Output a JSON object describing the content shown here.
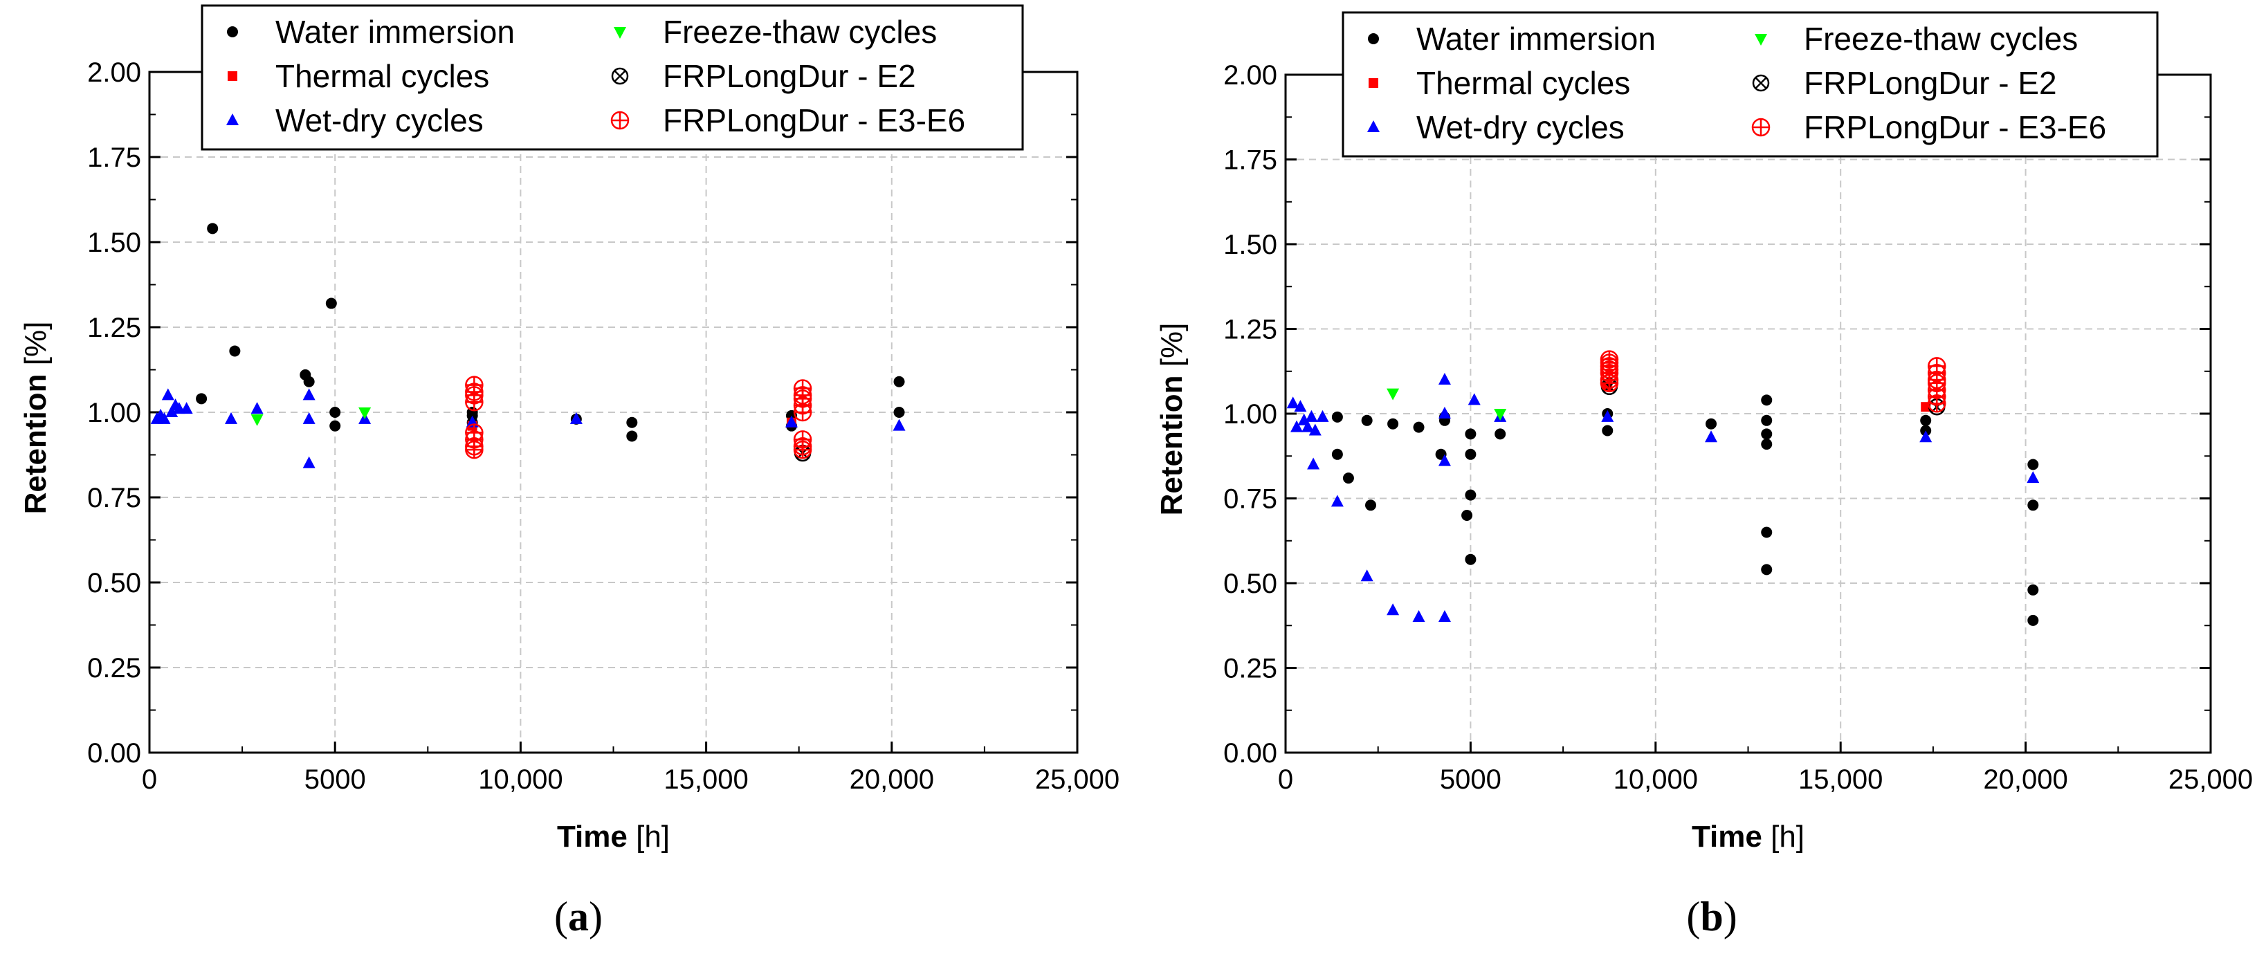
{
  "colors": {
    "water": "#000000",
    "thermal": "#ff0000",
    "wetdry": "#0000ff",
    "freeze": "#00ff00",
    "e2": "#000000",
    "e36": "#ff0000",
    "grid": "#c8c8c8"
  },
  "legend": {
    "water": "Water immersion",
    "thermal": "Thermal cycles",
    "wetdry": "Wet-dry cycles",
    "freeze": "Freeze-thaw cycles",
    "e2": "FRPLongDur - E2",
    "e36": "FRPLongDur - E3-E6"
  },
  "chart_data": [
    {
      "type": "scatter",
      "panel_label": "a",
      "xlabel_bold": "Time",
      "xlabel_unit": " [h]",
      "ylabel_bold": "Retention",
      "ylabel_unit": " [%]",
      "xlim": [
        0,
        25000
      ],
      "ylim": [
        0,
        2.0
      ],
      "grid": true,
      "legend_position": "top-center",
      "x_ticks": [
        0,
        5000,
        10000,
        15000,
        20000,
        25000
      ],
      "x_tick_labels": [
        "0",
        "5000",
        "10,000",
        "15,000",
        "20,000",
        "25,000"
      ],
      "y_ticks": [
        0,
        0.25,
        0.5,
        0.75,
        1.0,
        1.25,
        1.5,
        1.75,
        2.0
      ],
      "y_tick_labels": [
        "0.00",
        "0.25",
        "0.50",
        "0.75",
        "1.00",
        "1.25",
        "1.50",
        "1.75",
        "2.00"
      ],
      "series": [
        {
          "name": "Water immersion",
          "key": "water",
          "x": [
            1400,
            1700,
            2300,
            4200,
            4300,
            4900,
            5000,
            5000,
            8700,
            8700,
            8700,
            11500,
            13000,
            13000,
            17300,
            17300,
            20200,
            20200
          ],
          "y": [
            1.04,
            1.54,
            1.18,
            1.11,
            1.09,
            1.32,
            1.0,
            0.96,
            1.0,
            0.99,
            0.97,
            0.98,
            0.97,
            0.93,
            0.99,
            0.96,
            1.09,
            1.0
          ]
        },
        {
          "name": "Thermal cycles",
          "key": "thermal",
          "x": [
            8700,
            17300
          ],
          "y": [
            0.96,
            0.97
          ]
        },
        {
          "name": "Wet-dry cycles",
          "key": "wetdry",
          "x": [
            200,
            300,
            400,
            500,
            600,
            700,
            800,
            1000,
            2200,
            2900,
            4300,
            4300,
            4300,
            5800,
            8700,
            11500,
            17300,
            20200
          ],
          "y": [
            0.98,
            0.99,
            0.98,
            1.05,
            1.0,
            1.02,
            1.01,
            1.01,
            0.98,
            1.01,
            1.05,
            0.98,
            0.85,
            0.98,
            0.97,
            0.98,
            0.97,
            0.96
          ]
        },
        {
          "name": "Freeze-thaw cycles",
          "key": "freeze",
          "x": [
            2900,
            5800
          ],
          "y": [
            0.98,
            1.0
          ]
        },
        {
          "name": "FRPLongDur - E2",
          "key": "e2",
          "x": [
            17600
          ],
          "y": [
            0.88
          ]
        },
        {
          "name": "FRPLongDur - E3-E6",
          "key": "e36",
          "x": [
            8750,
            8750,
            8750,
            8750,
            8750,
            8750,
            8750,
            8750,
            17600,
            17600,
            17600,
            17600,
            17600,
            17600,
            17600,
            17600
          ],
          "y": [
            1.08,
            1.06,
            1.05,
            1.03,
            0.94,
            0.92,
            0.9,
            0.89,
            1.07,
            1.05,
            1.04,
            1.02,
            1.0,
            0.92,
            0.9,
            0.89
          ]
        }
      ]
    },
    {
      "type": "scatter",
      "panel_label": "b",
      "xlabel_bold": "Time",
      "xlabel_unit": " [h]",
      "ylabel_bold": "Retention",
      "ylabel_unit": " [%]",
      "xlim": [
        0,
        25000
      ],
      "ylim": [
        0,
        2.0
      ],
      "grid": true,
      "legend_position": "top-center",
      "x_ticks": [
        0,
        5000,
        10000,
        15000,
        20000,
        25000
      ],
      "x_tick_labels": [
        "0",
        "5000",
        "10,000",
        "15,000",
        "20,000",
        "25,000"
      ],
      "y_ticks": [
        0,
        0.25,
        0.5,
        0.75,
        1.0,
        1.25,
        1.5,
        1.75,
        2.0
      ],
      "y_tick_labels": [
        "0.00",
        "0.25",
        "0.50",
        "0.75",
        "1.00",
        "1.25",
        "1.50",
        "1.75",
        "2.00"
      ],
      "series": [
        {
          "name": "Water immersion",
          "key": "water",
          "x": [
            1400,
            1400,
            1700,
            2200,
            2300,
            2900,
            3600,
            4200,
            4300,
            4300,
            4900,
            5000,
            5000,
            5000,
            5000,
            5800,
            8700,
            8700,
            11500,
            13000,
            13000,
            13000,
            13000,
            13000,
            13000,
            17300,
            17300,
            20200,
            20200,
            20200,
            20200
          ],
          "y": [
            0.99,
            0.88,
            0.81,
            0.98,
            0.73,
            0.97,
            0.96,
            0.88,
            0.99,
            0.98,
            0.7,
            0.94,
            0.88,
            0.76,
            0.57,
            0.94,
            1.0,
            0.95,
            0.97,
            1.04,
            0.98,
            0.94,
            0.91,
            0.65,
            0.54,
            0.98,
            0.95,
            0.85,
            0.73,
            0.48,
            0.39
          ]
        },
        {
          "name": "Thermal cycles",
          "key": "thermal",
          "x": [
            8700,
            17300
          ],
          "y": [
            1.08,
            1.02
          ]
        },
        {
          "name": "Wet-dry cycles",
          "key": "wetdry",
          "x": [
            200,
            300,
            400,
            500,
            600,
            700,
            750,
            800,
            1000,
            1400,
            2200,
            2900,
            3600,
            4300,
            4300,
            4300,
            4300,
            5100,
            5800,
            8700,
            11500,
            17300,
            20200
          ],
          "y": [
            1.03,
            0.96,
            1.02,
            0.98,
            0.96,
            0.99,
            0.85,
            0.95,
            0.99,
            0.74,
            0.52,
            0.42,
            0.4,
            1.1,
            1.0,
            0.86,
            0.4,
            1.04,
            0.99,
            0.99,
            0.93,
            0.93,
            0.81
          ]
        },
        {
          "name": "Freeze-thaw cycles",
          "key": "freeze",
          "x": [
            2900,
            5800
          ],
          "y": [
            1.06,
            1.0
          ]
        },
        {
          "name": "FRPLongDur - E2",
          "key": "e2",
          "x": [
            8750,
            17600
          ],
          "y": [
            1.08,
            1.02
          ]
        },
        {
          "name": "FRPLongDur - E3-E6",
          "key": "e36",
          "x": [
            8750,
            8750,
            8750,
            8750,
            8750,
            8750,
            8750,
            17600,
            17600,
            17600,
            17600,
            17600,
            17600,
            17600
          ],
          "y": [
            1.16,
            1.15,
            1.14,
            1.13,
            1.12,
            1.1,
            1.09,
            1.14,
            1.12,
            1.1,
            1.09,
            1.07,
            1.05,
            1.03
          ]
        }
      ]
    }
  ]
}
